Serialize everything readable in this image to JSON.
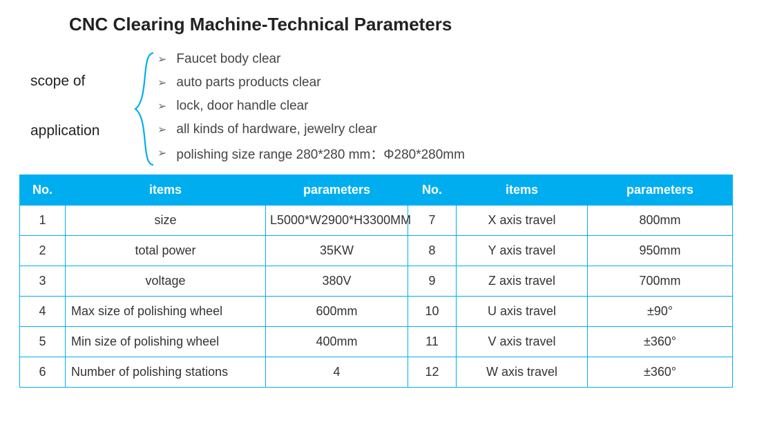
{
  "title": "CNC Clearing Machine-Technical Parameters",
  "scope_label_line1": "scope of",
  "scope_label_line2": "application",
  "scope": {
    "items": [
      "Faucet body clear",
      "auto parts products clear",
      "lock, door handle clear",
      "all kinds of hardware, jewelry clear",
      "polishing size range 280*280 mm：Φ280*280mm"
    ]
  },
  "table": {
    "header_bg": "#00aef0",
    "border_color": "#00aef0",
    "headers": {
      "no": "No.",
      "items": "items",
      "params": "parameters"
    },
    "rows": [
      {
        "n1": "1",
        "i1": "size",
        "p1": "L5000*W2900*H3300MM",
        "n2": "7",
        "i2": "X axis travel",
        "p2": "800mm",
        "align": "center",
        "tall": true
      },
      {
        "n1": "2",
        "i1": "total power",
        "p1": "35KW",
        "n2": "8",
        "i2": "Y axis travel",
        "p2": "950mm",
        "align": "center"
      },
      {
        "n1": "3",
        "i1": "voltage",
        "p1": "380V",
        "n2": "9",
        "i2": "Z axis travel",
        "p2": "700mm",
        "align": "center"
      },
      {
        "n1": "4",
        "i1": "Max size of polishing wheel",
        "p1": "600mm",
        "n2": "10",
        "i2": "U axis travel",
        "p2": "±90°",
        "align": "left"
      },
      {
        "n1": "5",
        "i1": "Min size of polishing wheel",
        "p1": "400mm",
        "n2": "11",
        "i2": "V axis travel",
        "p2": "±360°",
        "align": "left"
      },
      {
        "n1": "6",
        "i1": "Number of polishing stations",
        "p1": "4",
        "n2": "12",
        "i2": "W axis travel",
        "p2": "±360°",
        "align": "left"
      }
    ]
  },
  "bracket_color": "#00aef0"
}
